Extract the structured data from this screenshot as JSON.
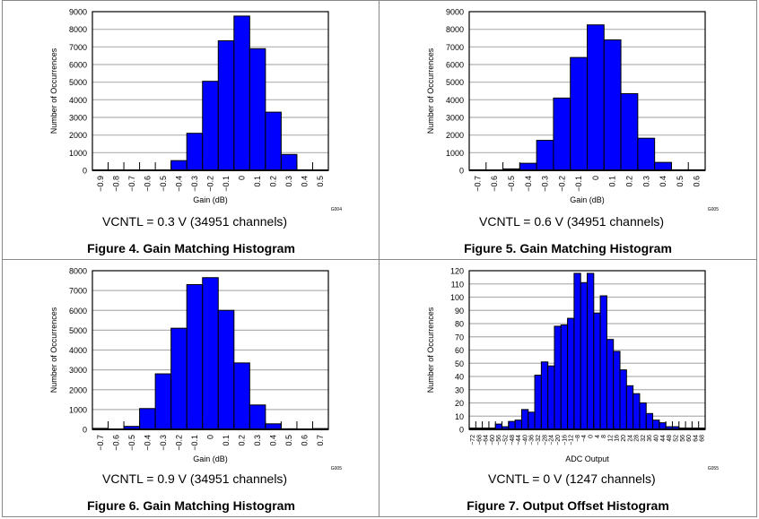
{
  "chart_data": [
    {
      "type": "bar",
      "figure_title": "Figure 4. Gain Matching Histogram",
      "condition": "VCNTL = 0.3 V (34951 channels)",
      "code": "G004",
      "xlabel": "Gain (dB)",
      "ylabel": "Number of Occurrences",
      "ylim": [
        0,
        9000
      ],
      "yticks": [
        "0",
        "1000",
        "2000",
        "3000",
        "4000",
        "5000",
        "6000",
        "7000",
        "8000",
        "9000"
      ],
      "categories": [
        "−0.9",
        "−0.8",
        "−0.7",
        "−0.6",
        "−0.5",
        "−0.4",
        "−0.3",
        "−0.2",
        "−0.1",
        "0",
        "0.1",
        "0.2",
        "0.3",
        "0.4",
        "0.5"
      ],
      "values": [
        0,
        0,
        0,
        0,
        0,
        550,
        2100,
        5050,
        7350,
        8750,
        6900,
        3300,
        900,
        30,
        0
      ],
      "grid": true,
      "color": "#0000ff"
    },
    {
      "type": "bar",
      "figure_title": "Figure 5. Gain Matching Histogram",
      "condition": "VCNTL = 0.6 V (34951 channels)",
      "code": "G005",
      "xlabel": "Gain (dB)",
      "ylabel": "Number of Occurrences",
      "ylim": [
        0,
        9000
      ],
      "yticks": [
        "0",
        "1000",
        "2000",
        "3000",
        "4000",
        "5000",
        "6000",
        "7000",
        "8000",
        "9000"
      ],
      "categories": [
        "−0.7",
        "−0.6",
        "−0.5",
        "−0.4",
        "−0.3",
        "−0.2",
        "−0.1",
        "0",
        "0.1",
        "0.2",
        "0.3",
        "0.4",
        "0.5",
        "0.6"
      ],
      "values": [
        30,
        0,
        80,
        400,
        1700,
        4100,
        6400,
        8250,
        7400,
        4350,
        1820,
        450,
        30,
        30
      ],
      "grid": true,
      "color": "#0000ff"
    },
    {
      "type": "bar",
      "figure_title": "Figure 6. Gain Matching Histogram",
      "condition": "VCNTL = 0.9 V (34951 channels)",
      "code": "G005",
      "xlabel": "Gain (dB)",
      "ylabel": "Number of Occurrences",
      "ylim": [
        0,
        8000
      ],
      "yticks": [
        "0",
        "1000",
        "2000",
        "3000",
        "4000",
        "5000",
        "6000",
        "7000",
        "8000"
      ],
      "categories": [
        "−0.7",
        "−0.6",
        "−0.5",
        "−0.4",
        "−0.3",
        "−0.2",
        "−0.1",
        "0",
        "0.1",
        "0.2",
        "0.3",
        "0.4",
        "0.5",
        "0.6",
        "0.7"
      ],
      "values": [
        50,
        0,
        150,
        1050,
        2800,
        5100,
        7300,
        7650,
        6000,
        3350,
        1230,
        280,
        30,
        0,
        40
      ],
      "grid": true,
      "color": "#0000ff"
    },
    {
      "type": "bar",
      "figure_title": "Figure 7. Output Offset Histogram",
      "condition": "VCNTL = 0 V (1247 channels)",
      "code": "G055",
      "xlabel": "ADC Output",
      "ylabel": "Number of Occurrences",
      "ylim": [
        0,
        120
      ],
      "yticks": [
        "0",
        "10",
        "20",
        "30",
        "40",
        "50",
        "60",
        "70",
        "80",
        "90",
        "100",
        "110",
        "120"
      ],
      "categories": [
        "−72",
        "−68",
        "−64",
        "−60",
        "−56",
        "−52",
        "−48",
        "−44",
        "−40",
        "−36",
        "−32",
        "−28",
        "−24",
        "−20",
        "−16",
        "−12",
        "−8",
        "−4",
        "0",
        "4",
        "8",
        "12",
        "16",
        "20",
        "24",
        "28",
        "32",
        "36",
        "40",
        "44",
        "48",
        "52",
        "56",
        "60",
        "64",
        "68"
      ],
      "values": [
        1,
        1,
        1,
        1,
        4,
        2,
        6,
        7,
        15,
        13,
        41,
        51,
        48,
        78,
        79,
        84,
        118,
        111,
        118,
        88,
        101,
        68,
        59,
        45,
        33,
        27,
        20,
        12,
        7,
        5,
        2,
        2,
        1,
        1,
        1,
        1
      ],
      "grid": true,
      "color": "#0000ff"
    }
  ]
}
